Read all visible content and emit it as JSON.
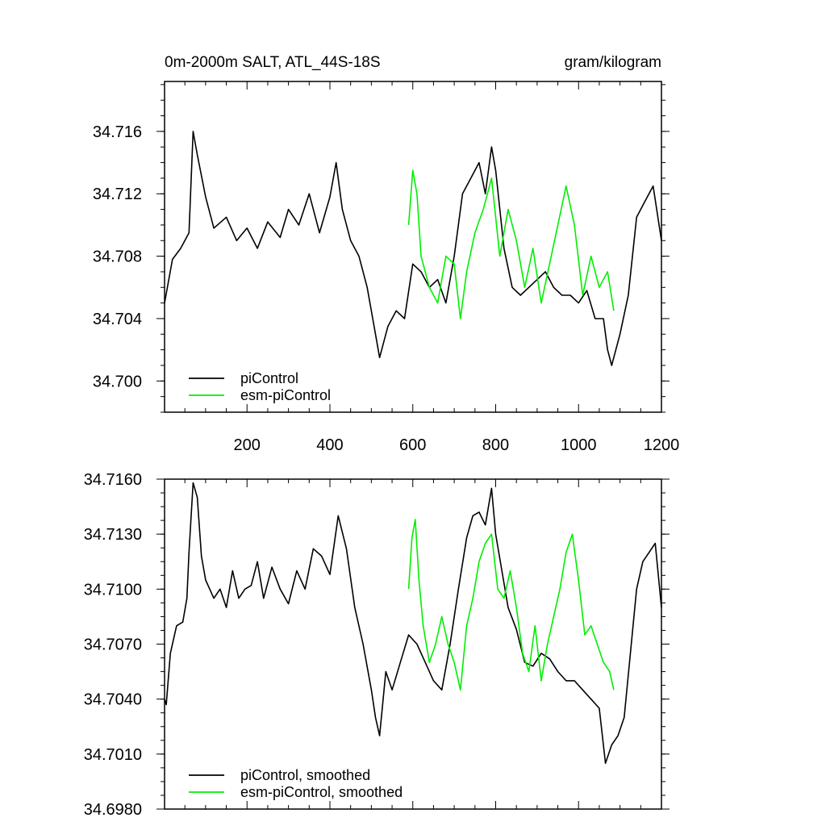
{
  "chart_data": [
    {
      "type": "line",
      "title": "0m-2000m SALT, ATL_44S-18S",
      "units": "gram/kilogram",
      "xlim": [
        1,
        1200
      ],
      "ylim": [
        34.698,
        34.7192
      ],
      "xticks": [
        200,
        400,
        600,
        800,
        1000,
        1200
      ],
      "yticks": [
        34.7,
        34.704,
        34.708,
        34.712,
        34.716
      ],
      "ytick_labels": [
        "34.700",
        "34.704",
        "34.708",
        "34.712",
        "34.716"
      ],
      "legend_position": "bottom-left",
      "series": [
        {
          "name": "piControl",
          "color": "#000000",
          "x": [
            1,
            20,
            40,
            60,
            70,
            80,
            100,
            120,
            150,
            175,
            200,
            225,
            250,
            280,
            300,
            325,
            350,
            375,
            400,
            415,
            430,
            450,
            470,
            490,
            510,
            520,
            540,
            560,
            580,
            600,
            620,
            640,
            660,
            680,
            700,
            720,
            740,
            760,
            775,
            790,
            800,
            820,
            840,
            860,
            880,
            900,
            920,
            940,
            960,
            980,
            1000,
            1020,
            1040,
            1060,
            1070,
            1080,
            1100,
            1120,
            1140,
            1160,
            1180,
            1200
          ],
          "y": [
            34.705,
            34.7078,
            34.7085,
            34.7095,
            34.716,
            34.7145,
            34.7118,
            34.7098,
            34.7105,
            34.709,
            34.7098,
            34.7085,
            34.7102,
            34.7092,
            34.711,
            34.71,
            34.712,
            34.7095,
            34.7118,
            34.714,
            34.711,
            34.709,
            34.708,
            34.706,
            34.703,
            34.7015,
            34.7035,
            34.7045,
            34.704,
            34.7075,
            34.707,
            34.706,
            34.7065,
            34.705,
            34.708,
            34.712,
            34.713,
            34.714,
            34.712,
            34.715,
            34.7135,
            34.7085,
            34.706,
            34.7055,
            34.706,
            34.7065,
            34.707,
            34.706,
            34.7055,
            34.7055,
            34.705,
            34.7058,
            34.704,
            34.704,
            34.702,
            34.701,
            34.703,
            34.7055,
            34.7105,
            34.7115,
            34.7125,
            34.709
          ]
        },
        {
          "name": "esm-piControl",
          "color": "#00ee00",
          "x": [
            590,
            600,
            610,
            620,
            640,
            660,
            680,
            700,
            715,
            730,
            750,
            770,
            790,
            810,
            830,
            850,
            870,
            890,
            910,
            930,
            950,
            970,
            990,
            1010,
            1030,
            1050,
            1070,
            1085
          ],
          "y": [
            34.71,
            34.7135,
            34.712,
            34.708,
            34.706,
            34.705,
            34.708,
            34.7075,
            34.704,
            34.707,
            34.7095,
            34.711,
            34.713,
            34.708,
            34.711,
            34.709,
            34.706,
            34.7085,
            34.705,
            34.7075,
            34.71,
            34.7125,
            34.71,
            34.7055,
            34.708,
            34.706,
            34.707,
            34.7045
          ]
        }
      ]
    },
    {
      "type": "line",
      "title": "",
      "xlim": [
        1,
        1200
      ],
      "ylim": [
        34.698,
        34.716
      ],
      "yticks": [
        34.698,
        34.701,
        34.704,
        34.707,
        34.71,
        34.713,
        34.716
      ],
      "ytick_labels": [
        "34.6980",
        "34.7010",
        "34.7040",
        "34.7070",
        "34.7100",
        "34.7130",
        "34.7160"
      ],
      "legend_position": "bottom-left",
      "series": [
        {
          "name": "piControl, smoothed",
          "color": "#000000",
          "x": [
            1,
            5,
            15,
            30,
            45,
            55,
            60,
            70,
            80,
            90,
            100,
            110,
            120,
            135,
            150,
            165,
            180,
            195,
            210,
            225,
            240,
            260,
            280,
            300,
            320,
            340,
            360,
            380,
            400,
            420,
            440,
            460,
            480,
            500,
            510,
            520,
            535,
            550,
            570,
            590,
            610,
            630,
            650,
            670,
            690,
            710,
            730,
            745,
            760,
            775,
            790,
            800,
            815,
            830,
            850,
            870,
            890,
            910,
            930,
            950,
            970,
            990,
            1010,
            1030,
            1050,
            1065,
            1080,
            1095,
            1110,
            1125,
            1140,
            1155,
            1170,
            1185,
            1200
          ],
          "y": [
            34.704,
            34.7037,
            34.7065,
            34.708,
            34.7082,
            34.7095,
            34.712,
            34.7158,
            34.715,
            34.7118,
            34.7105,
            34.71,
            34.7095,
            34.71,
            34.709,
            34.711,
            34.7095,
            34.71,
            34.7102,
            34.7115,
            34.7095,
            34.7112,
            34.71,
            34.7092,
            34.711,
            34.71,
            34.7122,
            34.7118,
            34.7108,
            34.714,
            34.7122,
            34.709,
            34.707,
            34.7045,
            34.703,
            34.702,
            34.7055,
            34.7045,
            34.706,
            34.7075,
            34.707,
            34.706,
            34.705,
            34.7045,
            34.707,
            34.71,
            34.7128,
            34.714,
            34.7142,
            34.7135,
            34.7155,
            34.713,
            34.711,
            34.709,
            34.7078,
            34.706,
            34.7058,
            34.7065,
            34.7062,
            34.7055,
            34.705,
            34.705,
            34.7045,
            34.704,
            34.7035,
            34.7005,
            34.7015,
            34.702,
            34.703,
            34.7065,
            34.71,
            34.7115,
            34.712,
            34.7125,
            34.709
          ]
        },
        {
          "name": "esm-piControl, smoothed",
          "color": "#00ee00",
          "x": [
            590,
            598,
            606,
            615,
            625,
            640,
            655,
            670,
            685,
            700,
            715,
            730,
            745,
            760,
            775,
            790,
            805,
            820,
            835,
            850,
            865,
            880,
            895,
            910,
            925,
            940,
            955,
            970,
            985,
            1000,
            1015,
            1030,
            1045,
            1060,
            1075,
            1085
          ],
          "y": [
            34.71,
            34.7128,
            34.7138,
            34.7105,
            34.708,
            34.706,
            34.707,
            34.7085,
            34.707,
            34.706,
            34.7045,
            34.708,
            34.7095,
            34.7115,
            34.7125,
            34.713,
            34.71,
            34.7095,
            34.711,
            34.709,
            34.7065,
            34.7055,
            34.708,
            34.705,
            34.707,
            34.7085,
            34.71,
            34.712,
            34.713,
            34.7105,
            34.7075,
            34.708,
            34.707,
            34.706,
            34.7055,
            34.7045
          ]
        }
      ]
    }
  ]
}
